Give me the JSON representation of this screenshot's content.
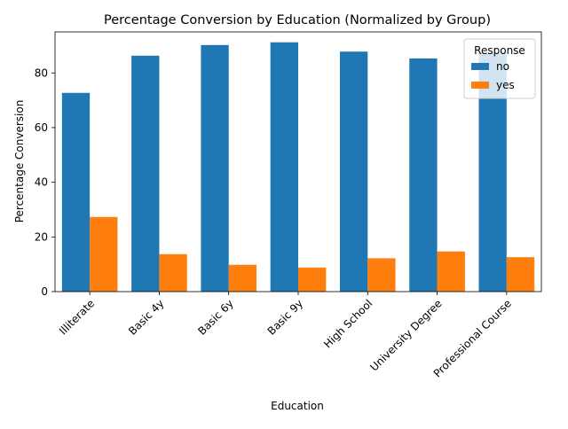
{
  "chart_data": {
    "type": "bar",
    "title": "Percentage Conversion by Education (Normalized by Group)",
    "xlabel": "Education",
    "ylabel": "Percentage Conversion",
    "categories": [
      "Illiterate",
      "Basic 4y",
      "Basic 6y",
      "Basic 9y",
      "High School",
      "University Degree",
      "Professional Course"
    ],
    "series": [
      {
        "name": "no",
        "color": "#1f77b4",
        "values": [
          72.7,
          86.3,
          90.2,
          91.2,
          87.8,
          85.3,
          87.4
        ]
      },
      {
        "name": "yes",
        "color": "#ff7f0e",
        "values": [
          27.3,
          13.7,
          9.8,
          8.8,
          12.2,
          14.7,
          12.6
        ]
      }
    ],
    "ylim": [
      0,
      95
    ],
    "yticks": [
      0,
      20,
      40,
      60,
      80
    ],
    "legend": {
      "title": "Response",
      "position": "top-right"
    },
    "grid": false
  }
}
